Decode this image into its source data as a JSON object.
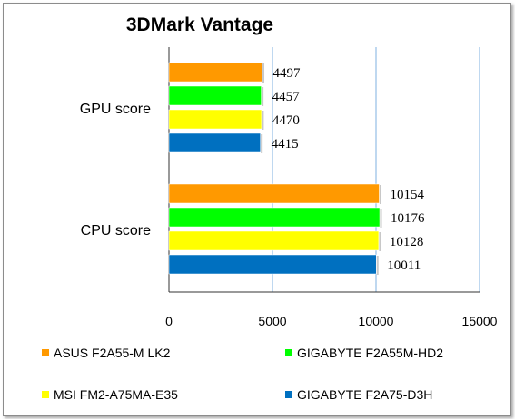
{
  "chart_data": {
    "type": "bar",
    "orientation": "horizontal",
    "title": "3DMark Vantage",
    "categories": [
      "GPU score",
      "CPU score"
    ],
    "series": [
      {
        "name": "ASUS F2A55-M LK2",
        "color": "#ff9900",
        "values": [
          4497,
          10154
        ]
      },
      {
        "name": "GIGABYTE F2A55M-HD2",
        "color": "#00ff00",
        "values": [
          4457,
          10176
        ]
      },
      {
        "name": "MSI FM2-A75MA-E35",
        "color": "#ffff00",
        "values": [
          4470,
          10128
        ]
      },
      {
        "name": "GIGABYTE F2A75-D3H",
        "color": "#0070c0",
        "values": [
          4415,
          10011
        ]
      }
    ],
    "xlim": [
      0,
      15000
    ],
    "xticks": [
      0,
      5000,
      10000,
      15000
    ],
    "grid": true,
    "legend_position": "bottom",
    "data_labels": true
  }
}
